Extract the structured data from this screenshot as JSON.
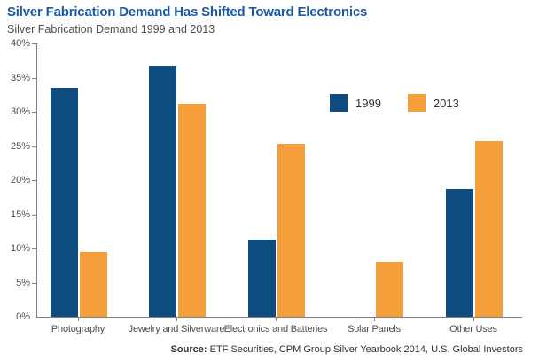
{
  "header": {
    "title": "Silver Fabrication Demand Has Shifted Toward Electronics",
    "subtitle": "Silver Fabrication Demand 1999 and 2013"
  },
  "chart_data": {
    "type": "bar",
    "title": "Silver Fabrication Demand Has Shifted Toward Electronics",
    "subtitle": "Silver Fabrication Demand 1999 and 2013",
    "categories": [
      "Photography",
      "Jewelry and Silverware",
      "Electronics and Batteries",
      "Solar Panels",
      "Other Uses"
    ],
    "series": [
      {
        "name": "1999",
        "color": "#0f4c7f",
        "values": [
          33.5,
          36.7,
          11.3,
          0,
          18.7
        ]
      },
      {
        "name": "2013",
        "color": "#f59e3c",
        "values": [
          9.5,
          31.2,
          25.3,
          8.1,
          25.7
        ]
      }
    ],
    "xlabel": "",
    "ylabel": "",
    "ylim": [
      0,
      40
    ],
    "ytick_step": 5,
    "ytick_suffix": "%",
    "grid": false,
    "legend_position": "upper-right-inside"
  },
  "colors": {
    "title": "#1a5aa5",
    "axis": "#808080",
    "tick_text": "#4d4d4d"
  },
  "footer": {
    "source_label": "Source:",
    "source_text": " ETF Securities, CPM Group Silver Yearbook 2014, U.S. Global Investors"
  }
}
